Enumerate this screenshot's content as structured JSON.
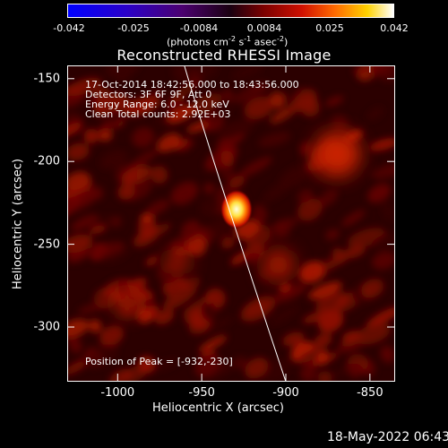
{
  "colorbar": {
    "tick_labels": [
      "-0.042",
      "-0.025",
      "-0.0084",
      "0.0084",
      "0.025",
      "0.042"
    ],
    "units": "(photons cm",
    "units_exp1": "-2",
    "units_mid": " s",
    "units_exp2": "-1",
    "units_mid2": " asec",
    "units_exp3": "-2",
    "units_end": ")"
  },
  "title": "Reconstructed RHESSI Image",
  "annotations": {
    "time_range": "17-Oct-2014 18:42:56.000 to 18:43:56.000",
    "detectors": "Detectors: 3F 6F 9F, Att 0",
    "energy_range": "Energy Range: 6.0 - 12.0 keV",
    "clean_total": "Clean    Total counts: 2.92E+03",
    "peak_position": "Position of Peak = [-932,-230]"
  },
  "axes": {
    "x_title": "Heliocentric X (arcsec)",
    "y_title": "Heliocentric Y (arcsec)",
    "x_tick_labels": [
      "-1000",
      "-950",
      "-900",
      "-850"
    ],
    "y_tick_labels": [
      "-150",
      "-200",
      "-250",
      "-300"
    ],
    "x_ticks": [
      -1000,
      -950,
      -900,
      -850
    ],
    "y_ticks": [
      -150,
      -200,
      -250,
      -300
    ],
    "x_range": [
      -1030,
      -835
    ],
    "y_range": [
      -333,
      -142
    ]
  },
  "image": {
    "colormap": "black-red-yellow-white",
    "peak_arcsec": [
      -932,
      -230
    ]
  },
  "footer": {
    "date": "18-May-2022 06:43"
  }
}
